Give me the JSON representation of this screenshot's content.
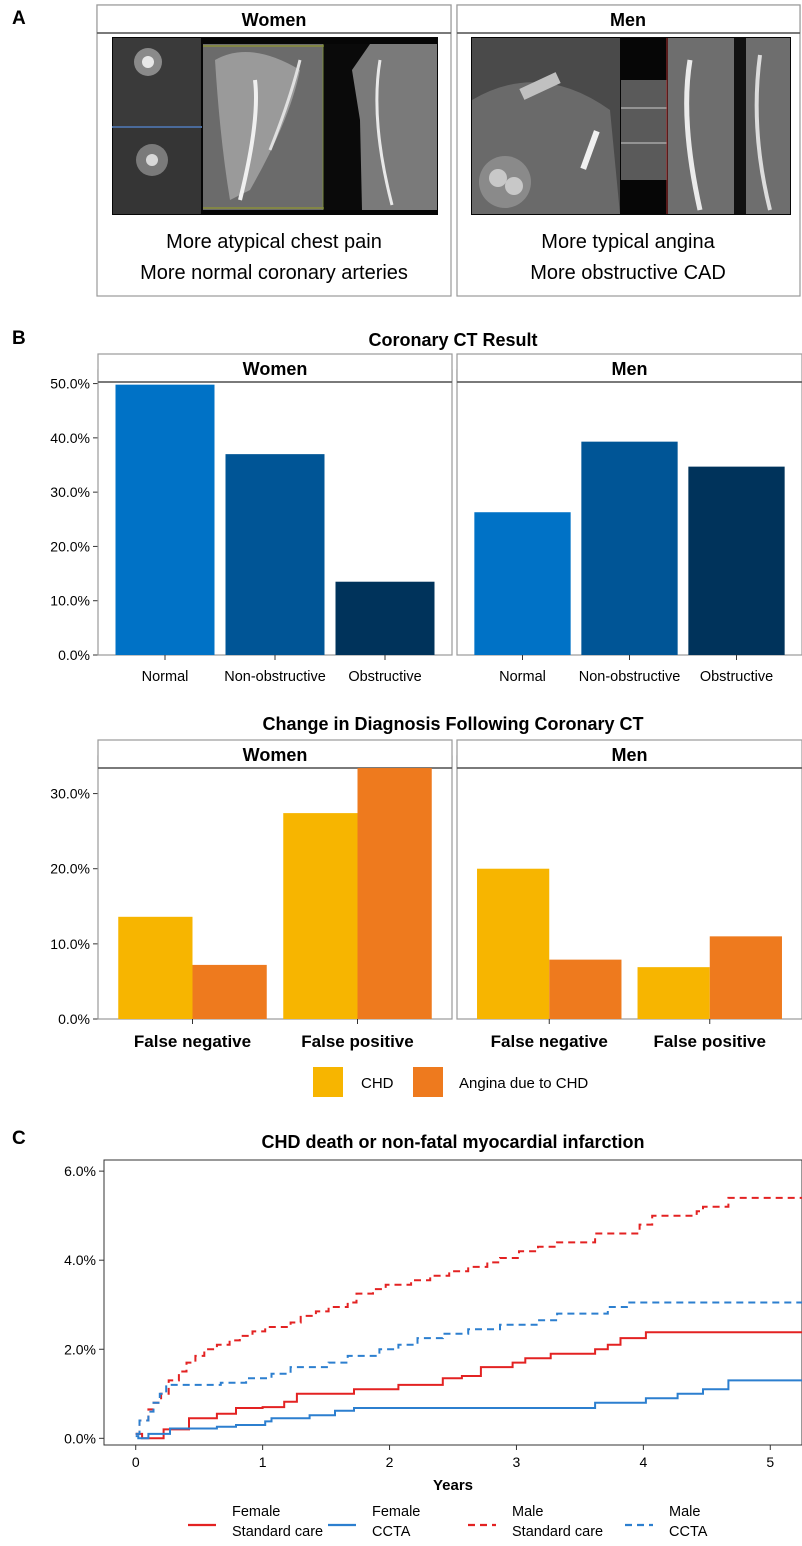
{
  "panel_a": {
    "letter": "A",
    "women": {
      "strip": "Women",
      "image": "coronary-ct-angiogram-women",
      "caption_line1": "More atypical chest pain",
      "caption_line2": "More normal coronary arteries"
    },
    "men": {
      "strip": "Men",
      "image": "coronary-ct-angiogram-men",
      "caption_line1": "More typical angina",
      "caption_line2": "More obstructive CAD"
    }
  },
  "chart_data": [
    {
      "id": "ct_result",
      "panel_letter": "B",
      "type": "bar",
      "title": "Coronary CT Result",
      "facets": [
        "Women",
        "Men"
      ],
      "categories": [
        "Normal",
        "Non-obstructive",
        "Obstructive"
      ],
      "values": {
        "Women": [
          49.8,
          37.0,
          13.5
        ],
        "Men": [
          26.3,
          39.3,
          34.7
        ]
      },
      "colors": [
        "#0072c6",
        "#005596",
        "#00335b"
      ],
      "ylim": [
        0,
        52.5
      ],
      "yticks": [
        0,
        10,
        20,
        30,
        40,
        50
      ],
      "ytick_labels": [
        "0.0%",
        "10.0%",
        "20.0%",
        "30.0%",
        "40.0%",
        "50.0%"
      ],
      "xlabel": "",
      "ylabel": ""
    },
    {
      "id": "diagnosis_change",
      "type": "bar",
      "title": "Change in Diagnosis Following Coronary CT",
      "facets": [
        "Women",
        "Men"
      ],
      "categories": [
        "False negative",
        "False positive"
      ],
      "series": [
        {
          "name": "CHD",
          "color": "#f7b500",
          "values": {
            "Women": [
              13.6,
              27.4
            ],
            "Men": [
              20.0,
              6.9
            ]
          }
        },
        {
          "name": "Angina due to CHD",
          "color": "#ee7a1e",
          "values": {
            "Women": [
              7.2,
              33.4
            ],
            "Men": [
              7.9,
              11.0
            ]
          }
        }
      ],
      "ylim": [
        0,
        35
      ],
      "yticks": [
        0,
        10,
        20,
        30
      ],
      "ytick_labels": [
        "0.0%",
        "10.0%",
        "20.0%",
        "30.0%"
      ],
      "legend": "bottom",
      "xlabel": "",
      "ylabel": ""
    },
    {
      "id": "cumulative_incidence",
      "panel_letter": "C",
      "type": "line",
      "title": "CHD death or non-fatal myocardial infarction",
      "xlabel": "Years",
      "ylabel": "",
      "xlim": [
        -0.25,
        5.25
      ],
      "ylim": [
        -0.15,
        6.25
      ],
      "xticks": [
        0,
        1,
        2,
        3,
        4,
        5
      ],
      "xtick_labels": [
        "0",
        "1",
        "2",
        "3",
        "4",
        "5"
      ],
      "yticks": [
        0,
        2,
        4,
        6
      ],
      "ytick_labels": [
        "0.0%",
        "2.0%",
        "4.0%",
        "6.0%"
      ],
      "legend": "bottom",
      "series": [
        {
          "name_line1": "Female",
          "name_line2": "Standard care",
          "color": "#e32222",
          "dash": "solid",
          "steps": [
            [
              0,
              0.1
            ],
            [
              0.05,
              0
            ],
            [
              0.2,
              0
            ],
            [
              0.22,
              0.2
            ],
            [
              0.4,
              0.2
            ],
            [
              0.42,
              0.45
            ],
            [
              0.62,
              0.45
            ],
            [
              0.64,
              0.55
            ],
            [
              0.77,
              0.55
            ],
            [
              0.79,
              0.68
            ],
            [
              0.98,
              0.68
            ],
            [
              1.0,
              0.7
            ],
            [
              1.15,
              0.7
            ],
            [
              1.17,
              0.82
            ],
            [
              1.25,
              0.82
            ],
            [
              1.27,
              1.0
            ],
            [
              1.7,
              1.0
            ],
            [
              1.72,
              1.1
            ],
            [
              2.05,
              1.1
            ],
            [
              2.07,
              1.2
            ],
            [
              2.4,
              1.2
            ],
            [
              2.42,
              1.35
            ],
            [
              2.55,
              1.35
            ],
            [
              2.57,
              1.4
            ],
            [
              2.7,
              1.4
            ],
            [
              2.72,
              1.6
            ],
            [
              2.95,
              1.6
            ],
            [
              2.97,
              1.7
            ],
            [
              3.05,
              1.7
            ],
            [
              3.07,
              1.8
            ],
            [
              3.25,
              1.8
            ],
            [
              3.27,
              1.9
            ],
            [
              3.6,
              1.9
            ],
            [
              3.62,
              2.0
            ],
            [
              3.7,
              2.0
            ],
            [
              3.72,
              2.1
            ],
            [
              3.8,
              2.1
            ],
            [
              3.82,
              2.25
            ],
            [
              4.0,
              2.25
            ],
            [
              4.02,
              2.38
            ],
            [
              5.25,
              2.38
            ]
          ]
        },
        {
          "name_line1": "Female",
          "name_line2": "CCTA",
          "color": "#2c7fcf",
          "dash": "solid",
          "steps": [
            [
              0,
              0.05
            ],
            [
              0.02,
              0
            ],
            [
              0.08,
              0
            ],
            [
              0.1,
              0.1
            ],
            [
              0.25,
              0.1
            ],
            [
              0.27,
              0.22
            ],
            [
              0.62,
              0.22
            ],
            [
              0.64,
              0.26
            ],
            [
              0.77,
              0.26
            ],
            [
              0.79,
              0.3
            ],
            [
              1.0,
              0.3
            ],
            [
              1.02,
              0.38
            ],
            [
              1.05,
              0.38
            ],
            [
              1.07,
              0.45
            ],
            [
              1.35,
              0.45
            ],
            [
              1.37,
              0.52
            ],
            [
              1.55,
              0.52
            ],
            [
              1.57,
              0.62
            ],
            [
              1.7,
              0.62
            ],
            [
              1.72,
              0.68
            ],
            [
              3.6,
              0.68
            ],
            [
              3.62,
              0.8
            ],
            [
              4.0,
              0.8
            ],
            [
              4.02,
              0.9
            ],
            [
              4.25,
              0.9
            ],
            [
              4.27,
              1.0
            ],
            [
              4.45,
              1.0
            ],
            [
              4.47,
              1.1
            ],
            [
              4.65,
              1.1
            ],
            [
              4.67,
              1.3
            ],
            [
              5.25,
              1.3
            ]
          ]
        },
        {
          "name_line1": "Male",
          "name_line2": "Standard care",
          "color": "#e32222",
          "dash": "dashed",
          "steps": [
            [
              0,
              0.1
            ],
            [
              0.03,
              0.4
            ],
            [
              0.08,
              0.4
            ],
            [
              0.1,
              0.65
            ],
            [
              0.12,
              0.65
            ],
            [
              0.14,
              0.8
            ],
            [
              0.18,
              0.8
            ],
            [
              0.2,
              1.0
            ],
            [
              0.24,
              1.0
            ],
            [
              0.26,
              1.3
            ],
            [
              0.32,
              1.3
            ],
            [
              0.34,
              1.5
            ],
            [
              0.38,
              1.5
            ],
            [
              0.4,
              1.7
            ],
            [
              0.45,
              1.7
            ],
            [
              0.47,
              1.85
            ],
            [
              0.52,
              1.85
            ],
            [
              0.54,
              2.0
            ],
            [
              0.62,
              2.0
            ],
            [
              0.64,
              2.1
            ],
            [
              0.72,
              2.1
            ],
            [
              0.74,
              2.2
            ],
            [
              0.8,
              2.2
            ],
            [
              0.82,
              2.3
            ],
            [
              0.9,
              2.3
            ],
            [
              0.92,
              2.4
            ],
            [
              1.0,
              2.4
            ],
            [
              1.02,
              2.5
            ],
            [
              1.2,
              2.5
            ],
            [
              1.22,
              2.6
            ],
            [
              1.28,
              2.6
            ],
            [
              1.3,
              2.75
            ],
            [
              1.4,
              2.75
            ],
            [
              1.42,
              2.85
            ],
            [
              1.5,
              2.85
            ],
            [
              1.52,
              2.95
            ],
            [
              1.65,
              2.95
            ],
            [
              1.67,
              3.05
            ],
            [
              1.72,
              3.05
            ],
            [
              1.74,
              3.25
            ],
            [
              1.85,
              3.25
            ],
            [
              1.87,
              3.35
            ],
            [
              1.95,
              3.35
            ],
            [
              1.97,
              3.45
            ],
            [
              2.15,
              3.45
            ],
            [
              2.17,
              3.55
            ],
            [
              2.3,
              3.55
            ],
            [
              2.32,
              3.65
            ],
            [
              2.45,
              3.65
            ],
            [
              2.47,
              3.75
            ],
            [
              2.6,
              3.75
            ],
            [
              2.62,
              3.85
            ],
            [
              2.75,
              3.85
            ],
            [
              2.77,
              3.95
            ],
            [
              2.85,
              3.95
            ],
            [
              2.87,
              4.05
            ],
            [
              3.0,
              4.05
            ],
            [
              3.02,
              4.2
            ],
            [
              3.15,
              4.2
            ],
            [
              3.17,
              4.3
            ],
            [
              3.3,
              4.3
            ],
            [
              3.32,
              4.4
            ],
            [
              3.6,
              4.4
            ],
            [
              3.62,
              4.6
            ],
            [
              3.95,
              4.6
            ],
            [
              3.97,
              4.8
            ],
            [
              4.05,
              4.8
            ],
            [
              4.07,
              5.0
            ],
            [
              4.4,
              5.0
            ],
            [
              4.42,
              5.1
            ],
            [
              4.45,
              5.1
            ],
            [
              4.47,
              5.2
            ],
            [
              4.65,
              5.2
            ],
            [
              4.67,
              5.4
            ],
            [
              5.25,
              5.4
            ]
          ]
        },
        {
          "name_line1": "Male",
          "name_line2": "CCTA",
          "color": "#2c7fcf",
          "dash": "dashed",
          "steps": [
            [
              0,
              0.1
            ],
            [
              0.03,
              0.4
            ],
            [
              0.08,
              0.4
            ],
            [
              0.1,
              0.6
            ],
            [
              0.12,
              0.6
            ],
            [
              0.14,
              0.8
            ],
            [
              0.17,
              0.8
            ],
            [
              0.19,
              1.0
            ],
            [
              0.22,
              1.0
            ],
            [
              0.24,
              1.2
            ],
            [
              0.65,
              1.2
            ],
            [
              0.67,
              1.25
            ],
            [
              0.85,
              1.25
            ],
            [
              0.87,
              1.35
            ],
            [
              1.05,
              1.35
            ],
            [
              1.07,
              1.45
            ],
            [
              1.2,
              1.45
            ],
            [
              1.22,
              1.6
            ],
            [
              1.5,
              1.6
            ],
            [
              1.52,
              1.7
            ],
            [
              1.65,
              1.7
            ],
            [
              1.67,
              1.85
            ],
            [
              1.9,
              1.85
            ],
            [
              1.92,
              2.0
            ],
            [
              2.05,
              2.0
            ],
            [
              2.07,
              2.1
            ],
            [
              2.2,
              2.1
            ],
            [
              2.22,
              2.25
            ],
            [
              2.4,
              2.25
            ],
            [
              2.42,
              2.35
            ],
            [
              2.6,
              2.35
            ],
            [
              2.62,
              2.45
            ],
            [
              2.85,
              2.45
            ],
            [
              2.87,
              2.55
            ],
            [
              3.15,
              2.55
            ],
            [
              3.17,
              2.65
            ],
            [
              3.3,
              2.65
            ],
            [
              3.32,
              2.8
            ],
            [
              3.7,
              2.8
            ],
            [
              3.72,
              2.95
            ],
            [
              3.85,
              2.95
            ],
            [
              3.87,
              3.05
            ],
            [
              5.25,
              3.05
            ]
          ]
        }
      ]
    }
  ]
}
